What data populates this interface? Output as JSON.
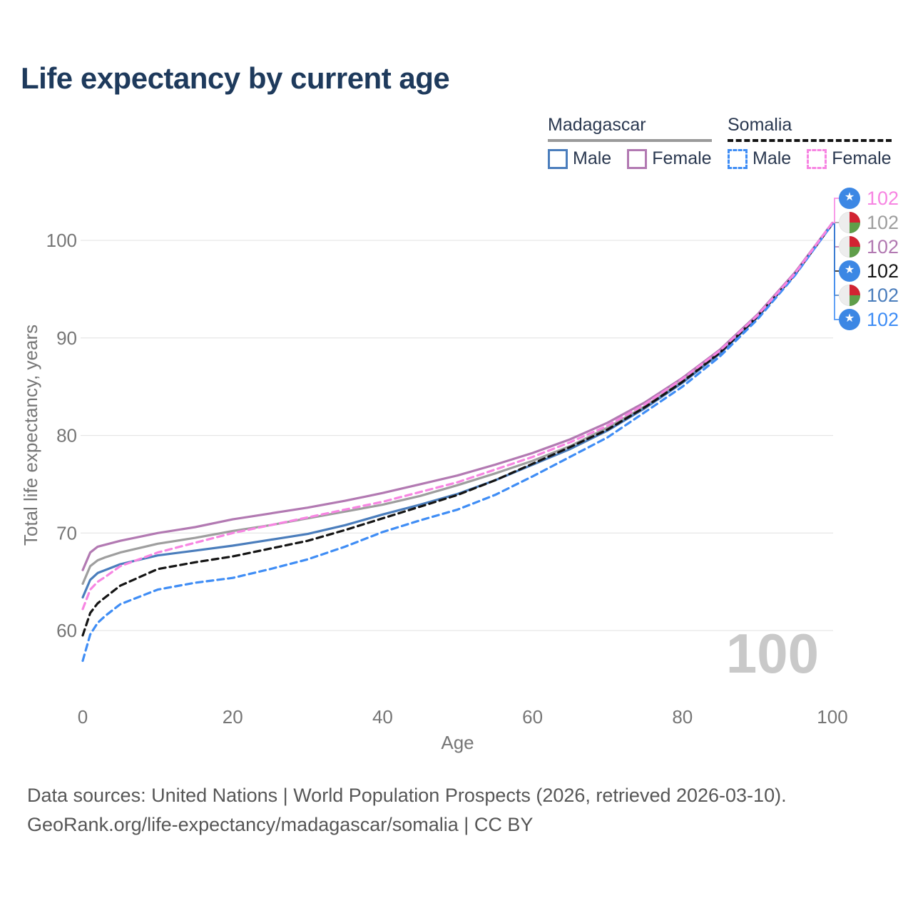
{
  "title": "Life expectancy by current age",
  "legend": {
    "groups": [
      {
        "name": "Madagascar",
        "line_color": "#9a9a9a",
        "dashed": false,
        "items": [
          {
            "label": "Male",
            "color": "#4a7dbc",
            "dashed": false
          },
          {
            "label": "Female",
            "color": "#b279b2",
            "dashed": false
          }
        ]
      },
      {
        "name": "Somalia",
        "line_color": "#141414",
        "dashed": true,
        "items": [
          {
            "label": "Male",
            "color": "#3f8df5",
            "dashed": true
          },
          {
            "label": "Female",
            "color": "#f785e2",
            "dashed": true
          }
        ]
      }
    ]
  },
  "watermark_age": "100",
  "footer": {
    "line1": "Data sources: United Nations | World Population Prospects (2026, retrieved 2026-03-10).",
    "line2": "GeoRank.org/life-expectancy/madagascar/somalia | CC BY"
  },
  "flag_colors": {
    "somalia_blue": "#3c87e4",
    "somalia_star": "#ffffff",
    "madagascar_white": "#ededed",
    "madagascar_red": "#d22332",
    "madagascar_green": "#5f9e49"
  },
  "colors": {
    "title": "#1e3a5c",
    "axis_text": "#767676",
    "gridline": "#e6e6e6",
    "watermark": "#c9c9c9",
    "footer_text": "#565656"
  },
  "chart_data": {
    "type": "line",
    "title": "Life expectancy by current age",
    "xlabel": "Age",
    "ylabel": "Total life expectancy, years",
    "xlim": [
      0,
      100
    ],
    "ylim": [
      56,
      104
    ],
    "x_ticks": [
      0,
      20,
      40,
      60,
      80,
      100
    ],
    "y_ticks": [
      60,
      70,
      80,
      90,
      100
    ],
    "grid": "horizontal-only",
    "legend_position": "top-right",
    "x": [
      0,
      1,
      2,
      3,
      5,
      10,
      15,
      20,
      25,
      30,
      35,
      40,
      45,
      50,
      55,
      60,
      65,
      70,
      75,
      80,
      85,
      90,
      95,
      100
    ],
    "series": [
      {
        "name": "Madagascar (both sexes)",
        "country": "Madagascar",
        "sex": "both",
        "color": "#9e9e9e",
        "dashed": false,
        "end_label": "102",
        "label_row": 1,
        "values": [
          64.8,
          66.6,
          67.2,
          67.5,
          68.0,
          68.9,
          69.5,
          70.2,
          70.8,
          71.5,
          72.2,
          72.9,
          73.8,
          74.9,
          76.1,
          77.4,
          78.9,
          80.8,
          83.0,
          85.6,
          88.6,
          92.2,
          96.5,
          101.7
        ]
      },
      {
        "name": "Madagascar Female",
        "country": "Madagascar",
        "sex": "female",
        "color": "#b279b2",
        "dashed": false,
        "end_label": "102",
        "label_row": 2,
        "values": [
          66.2,
          68.0,
          68.6,
          68.8,
          69.2,
          70.0,
          70.6,
          71.4,
          72.0,
          72.6,
          73.3,
          74.1,
          75.0,
          75.9,
          77.0,
          78.2,
          79.6,
          81.3,
          83.4,
          85.9,
          88.8,
          92.4,
          96.7,
          101.8
        ]
      },
      {
        "name": "Madagascar Male",
        "country": "Madagascar",
        "sex": "male",
        "color": "#4a7dbc",
        "dashed": false,
        "end_label": "102",
        "label_row": 4,
        "values": [
          63.4,
          65.2,
          65.9,
          66.2,
          66.8,
          67.7,
          68.2,
          68.7,
          69.3,
          69.9,
          70.8,
          71.9,
          72.9,
          74.0,
          75.4,
          77.0,
          78.6,
          80.5,
          82.8,
          85.4,
          88.4,
          92.1,
          96.5,
          101.7
        ]
      },
      {
        "name": "Somalia (both sexes)",
        "country": "Somalia",
        "sex": "both",
        "color": "#141414",
        "dashed": true,
        "end_label": "102",
        "label_row": 3,
        "values": [
          59.5,
          61.8,
          62.8,
          63.4,
          64.6,
          66.3,
          67.0,
          67.6,
          68.4,
          69.2,
          70.3,
          71.5,
          72.7,
          73.9,
          75.4,
          77.1,
          78.8,
          80.6,
          82.9,
          85.5,
          88.5,
          92.2,
          96.5,
          101.7
        ]
      },
      {
        "name": "Somalia Male",
        "country": "Somalia",
        "sex": "male",
        "color": "#3f8df5",
        "dashed": true,
        "end_label": "102",
        "label_row": 5,
        "values": [
          56.9,
          59.6,
          60.8,
          61.5,
          62.7,
          64.2,
          64.9,
          65.4,
          66.3,
          67.3,
          68.6,
          70.1,
          71.3,
          72.4,
          73.9,
          75.8,
          77.8,
          79.8,
          82.4,
          85.0,
          88.1,
          91.9,
          96.4,
          101.7
        ]
      },
      {
        "name": "Somalia Female",
        "country": "Somalia",
        "sex": "female",
        "color": "#f785e2",
        "dashed": true,
        "end_label": "102",
        "label_row": 0,
        "values": [
          62.2,
          64.2,
          65.0,
          65.5,
          66.6,
          68.0,
          69.0,
          70.0,
          70.8,
          71.6,
          72.4,
          73.2,
          74.2,
          75.2,
          76.5,
          77.8,
          79.3,
          81.0,
          83.2,
          85.8,
          88.7,
          92.3,
          96.6,
          101.8
        ]
      }
    ]
  }
}
